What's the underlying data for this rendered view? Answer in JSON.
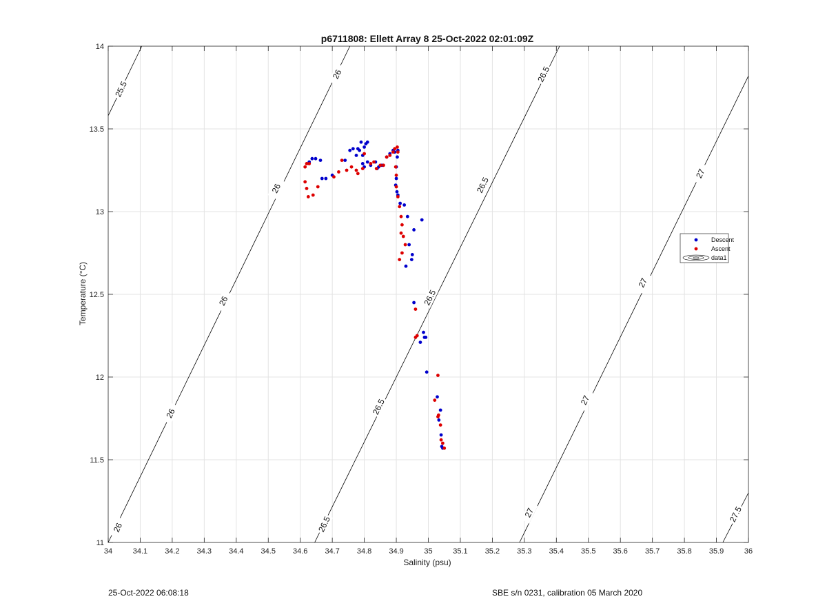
{
  "chart_data": {
    "type": "scatter",
    "title": "p6711808: Ellett Array 8 25-Oct-2022 02:01:09Z",
    "xlabel": "Salinity (psu)",
    "ylabel": "Temperature (°C)",
    "xlim": [
      34,
      36
    ],
    "ylim": [
      11,
      14
    ],
    "xticks": [
      "34",
      "34.1",
      "34.2",
      "34.3",
      "34.4",
      "34.5",
      "34.6",
      "34.7",
      "34.8",
      "34.9",
      "35",
      "35.1",
      "35.2",
      "35.3",
      "35.4",
      "35.5",
      "35.6",
      "35.7",
      "35.8",
      "35.9",
      "36"
    ],
    "yticks": [
      "11",
      "11.5",
      "12",
      "12.5",
      "13",
      "13.5",
      "14"
    ],
    "grid": true,
    "legend_position": "right",
    "legend": [
      "Descent",
      "Ascent",
      "data1"
    ],
    "colors": {
      "descent": "#0000cc",
      "ascent": "#dd0000",
      "contour": "#000000",
      "grid": "#e3e3e3"
    },
    "contours": [
      {
        "level": "25.5",
        "points": [
          [
            34.0,
            13.58
          ],
          [
            34.105,
            14.0
          ]
        ],
        "labels": [
          [
            34.04,
            13.74
          ]
        ]
      },
      {
        "level": "26",
        "points": [
          [
            34.0,
            11.0
          ],
          [
            34.755,
            14.0
          ]
        ],
        "labels": [
          [
            34.03,
            11.09
          ],
          [
            34.195,
            11.78
          ],
          [
            34.36,
            12.46
          ],
          [
            34.525,
            13.14
          ],
          [
            34.715,
            13.83
          ]
        ]
      },
      {
        "level": "26.5",
        "points": [
          [
            34.645,
            11.0
          ],
          [
            35.41,
            14.0
          ]
        ],
        "labels": [
          [
            34.675,
            11.11
          ],
          [
            34.845,
            11.82
          ],
          [
            35.005,
            12.48
          ],
          [
            35.17,
            13.16
          ],
          [
            35.36,
            13.83
          ]
        ]
      },
      {
        "level": "27",
        "points": [
          [
            35.285,
            11.0
          ],
          [
            36.0,
            13.82
          ]
        ],
        "labels": [
          [
            35.315,
            11.18
          ],
          [
            35.49,
            11.86
          ],
          [
            35.67,
            12.57
          ],
          [
            35.85,
            13.23
          ]
        ]
      },
      {
        "level": "27.5",
        "points": [
          [
            35.92,
            11.0
          ],
          [
            36.0,
            11.3
          ]
        ],
        "labels": [
          [
            35.96,
            11.17
          ]
        ]
      }
    ],
    "series": [
      {
        "name": "Descent",
        "points": [
          [
            34.628,
            13.3
          ],
          [
            34.637,
            13.32
          ],
          [
            34.648,
            13.32
          ],
          [
            34.663,
            13.31
          ],
          [
            34.668,
            13.2
          ],
          [
            34.68,
            13.2
          ],
          [
            34.7,
            13.22
          ],
          [
            34.74,
            13.31
          ],
          [
            34.755,
            13.37
          ],
          [
            34.765,
            13.38
          ],
          [
            34.775,
            13.34
          ],
          [
            34.78,
            13.38
          ],
          [
            34.785,
            13.37
          ],
          [
            34.79,
            13.42
          ],
          [
            34.795,
            13.34
          ],
          [
            34.8,
            13.39
          ],
          [
            34.805,
            13.41
          ],
          [
            34.81,
            13.42
          ],
          [
            34.795,
            13.29
          ],
          [
            34.8,
            13.27
          ],
          [
            34.81,
            13.3
          ],
          [
            34.82,
            13.28
          ],
          [
            34.835,
            13.3
          ],
          [
            34.845,
            13.27
          ],
          [
            34.855,
            13.28
          ],
          [
            34.84,
            13.26
          ],
          [
            34.87,
            13.33
          ],
          [
            34.88,
            13.35
          ],
          [
            34.89,
            13.37
          ],
          [
            34.895,
            13.36
          ],
          [
            34.905,
            13.37
          ],
          [
            34.903,
            13.33
          ],
          [
            34.9,
            13.27
          ],
          [
            34.9,
            13.2
          ],
          [
            34.898,
            13.16
          ],
          [
            34.902,
            13.12
          ],
          [
            34.905,
            13.1
          ],
          [
            34.912,
            13.05
          ],
          [
            34.925,
            13.04
          ],
          [
            34.935,
            12.97
          ],
          [
            34.955,
            12.89
          ],
          [
            34.98,
            12.95
          ],
          [
            34.94,
            12.8
          ],
          [
            34.95,
            12.74
          ],
          [
            34.948,
            12.71
          ],
          [
            34.93,
            12.67
          ],
          [
            34.955,
            12.45
          ],
          [
            34.975,
            12.21
          ],
          [
            34.985,
            12.27
          ],
          [
            34.988,
            12.24
          ],
          [
            34.992,
            12.24
          ],
          [
            34.995,
            12.03
          ],
          [
            35.028,
            11.88
          ],
          [
            35.033,
            11.74
          ],
          [
            35.038,
            11.8
          ],
          [
            35.04,
            11.65
          ],
          [
            35.042,
            11.58
          ],
          [
            35.045,
            11.57
          ]
        ]
      },
      {
        "name": "Ascent",
        "points": [
          [
            34.615,
            13.27
          ],
          [
            34.62,
            13.29
          ],
          [
            34.628,
            13.29
          ],
          [
            34.615,
            13.18
          ],
          [
            34.62,
            13.14
          ],
          [
            34.625,
            13.09
          ],
          [
            34.64,
            13.1
          ],
          [
            34.655,
            13.15
          ],
          [
            34.705,
            13.21
          ],
          [
            34.72,
            13.24
          ],
          [
            34.73,
            13.31
          ],
          [
            34.745,
            13.25
          ],
          [
            34.76,
            13.27
          ],
          [
            34.775,
            13.25
          ],
          [
            34.78,
            13.23
          ],
          [
            34.795,
            13.26
          ],
          [
            34.8,
            13.35
          ],
          [
            34.82,
            13.29
          ],
          [
            34.83,
            13.3
          ],
          [
            34.838,
            13.26
          ],
          [
            34.85,
            13.28
          ],
          [
            34.86,
            13.28
          ],
          [
            34.87,
            13.33
          ],
          [
            34.88,
            13.34
          ],
          [
            34.89,
            13.36
          ],
          [
            34.895,
            13.38
          ],
          [
            34.903,
            13.39
          ],
          [
            34.905,
            13.36
          ],
          [
            34.898,
            13.27
          ],
          [
            34.9,
            13.22
          ],
          [
            34.9,
            13.15
          ],
          [
            34.905,
            13.09
          ],
          [
            34.91,
            13.03
          ],
          [
            34.915,
            12.97
          ],
          [
            34.918,
            12.92
          ],
          [
            34.915,
            12.87
          ],
          [
            34.922,
            12.85
          ],
          [
            34.928,
            12.8
          ],
          [
            34.918,
            12.75
          ],
          [
            34.91,
            12.71
          ],
          [
            34.96,
            12.41
          ],
          [
            34.96,
            12.24
          ],
          [
            34.965,
            12.25
          ],
          [
            35.03,
            12.01
          ],
          [
            35.02,
            11.86
          ],
          [
            35.03,
            11.76
          ],
          [
            35.032,
            11.77
          ],
          [
            35.038,
            11.71
          ],
          [
            35.04,
            11.62
          ],
          [
            35.045,
            11.6
          ],
          [
            35.05,
            11.57
          ]
        ]
      }
    ]
  },
  "footer": {
    "left": "25-Oct-2022 06:08:18",
    "right": "SBE s/n 0231, calibration 05 March 2020"
  }
}
